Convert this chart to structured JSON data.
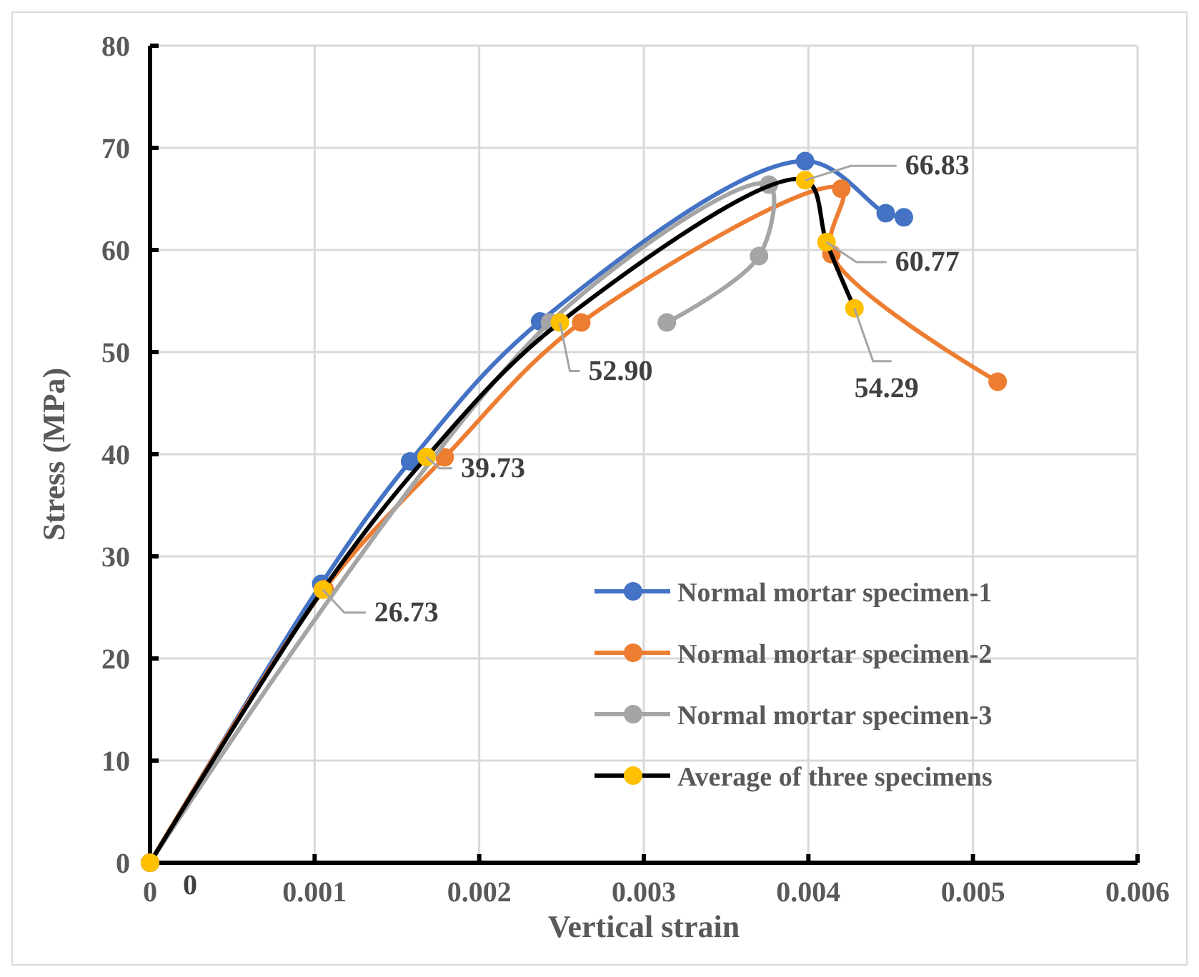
{
  "chart_data": {
    "type": "line",
    "xlabel": "Vertical strain",
    "ylabel": "Stress (MPa)",
    "xlim": [
      0,
      0.006
    ],
    "ylim": [
      0,
      80
    ],
    "xticks": [
      0,
      0.001,
      0.002,
      0.003,
      0.004,
      0.005,
      0.006
    ],
    "yticks": [
      0,
      10,
      20,
      30,
      40,
      50,
      60,
      70,
      80
    ],
    "grid": true,
    "legend": "bottom right",
    "marker": "circle",
    "line_style": "solid",
    "series": [
      {
        "name": "Normal mortar specimen-1",
        "color": "#4472c4",
        "x": [
          0,
          0.00104,
          0.00158,
          0.00237,
          0.00398,
          0.00447,
          0.00458
        ],
        "values": [
          0,
          27.3,
          39.3,
          53.0,
          68.7,
          63.6,
          63.2
        ]
      },
      {
        "name": "Normal mortar specimen-2",
        "color": "#ed7d31",
        "x": [
          0,
          0.00106,
          0.00179,
          0.00262,
          0.0042,
          0.00414,
          0.00515
        ],
        "values": [
          0,
          26.8,
          39.7,
          52.9,
          66.0,
          59.6,
          47.1
        ]
      },
      {
        "name": "Normal mortar specimen-3",
        "color": "#a5a5a5",
        "x": [
          0,
          0.00104,
          0.0017,
          0.00243,
          0.00376,
          0.0037,
          0.00314
        ],
        "values": [
          0,
          null,
          null,
          52.9,
          66.4,
          59.4,
          52.9
        ]
      },
      {
        "name": "Average  of three specimens",
        "color": "#000000",
        "colors": [
          "#ffc000",
          "#ffc000",
          "#ffc000",
          "#ffc000",
          "#ffc000",
          "#ffc000",
          "#ffc000"
        ],
        "x": [
          0,
          0.00105,
          0.00168,
          0.00249,
          0.00398,
          0.00411,
          0.00428
        ],
        "values": [
          0,
          26.73,
          39.73,
          52.9,
          66.83,
          60.77,
          54.29
        ],
        "value_labels": [
          "0",
          "26.73",
          "39.73",
          "52.90",
          "66.83",
          "60.77",
          "54.29"
        ]
      }
    ]
  }
}
